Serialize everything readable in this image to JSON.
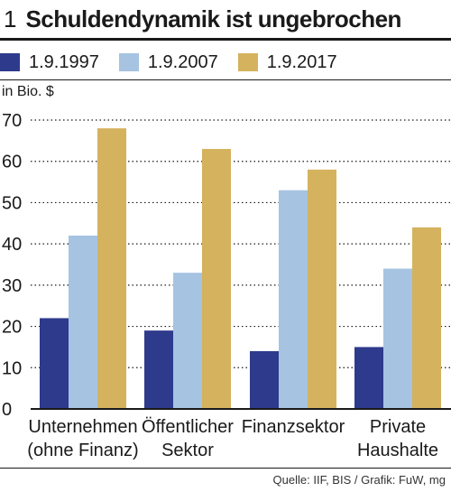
{
  "header": {
    "figure_number": "1",
    "title": "Schuldendynamik ist ungebrochen"
  },
  "source": "Quelle: IIF, BIS / Grafik: FuW, mg",
  "colors": {
    "1.9.1997": "#2e3a8c",
    "1.9.2007": "#a6c3e2",
    "1.9.2017": "#d4b25e",
    "grid": "#1a1a1a",
    "text": "#1a1a1a"
  },
  "chart_data": {
    "type": "bar",
    "title": "Schuldendynamik ist ungebrochen",
    "ylabel": "in Bio. $",
    "xlabel": "",
    "ylim": [
      0,
      70
    ],
    "yticks": [
      0,
      10,
      20,
      30,
      40,
      50,
      60,
      70
    ],
    "grid": "dotted horizontal",
    "legend_position": "top",
    "categories": [
      [
        "Unternehmen",
        "(ohne Finanz)"
      ],
      [
        "Öffentlicher",
        "Sektor"
      ],
      [
        "Finanzsektor"
      ],
      [
        "Private",
        "Haushalte"
      ]
    ],
    "series": [
      {
        "name": "1.9.1997",
        "color": "#2e3a8c",
        "values": [
          22,
          19,
          14,
          15
        ]
      },
      {
        "name": "1.9.2007",
        "color": "#a6c3e2",
        "values": [
          42,
          33,
          53,
          34
        ]
      },
      {
        "name": "1.9.2017",
        "color": "#d4b25e",
        "values": [
          68,
          63,
          58,
          44
        ]
      }
    ]
  }
}
